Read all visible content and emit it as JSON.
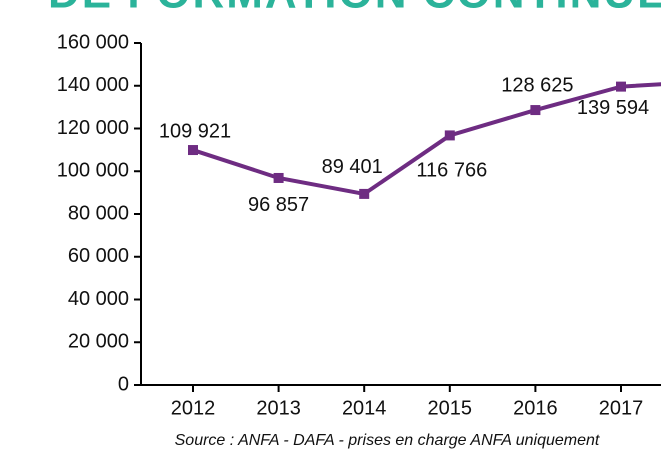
{
  "chart_data": {
    "type": "line",
    "title": "DE FORMATION CONTINUE",
    "source": "Source : ANFA - DAFA - prises en charge ANFA uniquement",
    "categories": [
      "2012",
      "2013",
      "2014",
      "2015",
      "2016",
      "2017",
      null
    ],
    "series": [
      {
        "color": "#6e2c82",
        "values": [
          109921,
          96857,
          89401,
          116766,
          128625,
          139594,
          142000
        ],
        "value_labels": [
          "109 921",
          "96 857",
          "89 401",
          "116 766",
          "128 625",
          "139 594",
          null
        ]
      }
    ],
    "ylim": [
      0,
      160000
    ],
    "yticks": [
      0,
      {
        "value": 20000,
        "label": "20 000"
      },
      {
        "value": 40000,
        "label": "40 000"
      },
      {
        "value": 60000,
        "label": "60 000"
      },
      {
        "value": 80000,
        "label": "80 000"
      },
      {
        "value": 100000,
        "label": "100 000"
      },
      {
        "value": 120000,
        "label": "120 000"
      },
      {
        "value": 140000,
        "label": "140 000"
      },
      {
        "value": 160000,
        "label": "160 000"
      }
    ]
  }
}
